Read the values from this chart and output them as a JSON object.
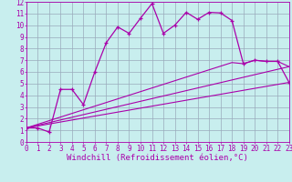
{
  "title": "",
  "xlabel": "Windchill (Refroidissement éolien,°C)",
  "xlim": [
    0,
    23
  ],
  "ylim": [
    0,
    12
  ],
  "xticks": [
    0,
    1,
    2,
    3,
    4,
    5,
    6,
    7,
    8,
    9,
    10,
    11,
    12,
    13,
    14,
    15,
    16,
    17,
    18,
    19,
    20,
    21,
    22,
    23
  ],
  "yticks": [
    0,
    1,
    2,
    3,
    4,
    5,
    6,
    7,
    8,
    9,
    10,
    11,
    12
  ],
  "bg_color": "#c8eeee",
  "line_color": "#aa00aa",
  "grid_color": "#99aabb",
  "line1_x": [
    0,
    1,
    2,
    3,
    4,
    5,
    6,
    7,
    8,
    9,
    10,
    11,
    12,
    13,
    14,
    15,
    16,
    17,
    18,
    19,
    20,
    21,
    22,
    23
  ],
  "line1_y": [
    1.2,
    1.2,
    0.85,
    4.5,
    4.5,
    3.2,
    6.0,
    8.5,
    9.85,
    9.3,
    10.6,
    11.85,
    9.3,
    10.0,
    11.1,
    10.5,
    11.1,
    11.05,
    10.4,
    6.7,
    7.0,
    6.9,
    6.9,
    5.1
  ],
  "line2_x": [
    0,
    18,
    19,
    20,
    21,
    22,
    23
  ],
  "line2_y": [
    1.2,
    6.8,
    6.7,
    7.0,
    6.9,
    6.9,
    6.45
  ],
  "line3_x": [
    0,
    23
  ],
  "line3_y": [
    1.2,
    6.45
  ],
  "line4_x": [
    0,
    23
  ],
  "line4_y": [
    1.2,
    5.1
  ],
  "font_family": "monospace",
  "tick_fontsize": 5.5,
  "label_fontsize": 6.5
}
